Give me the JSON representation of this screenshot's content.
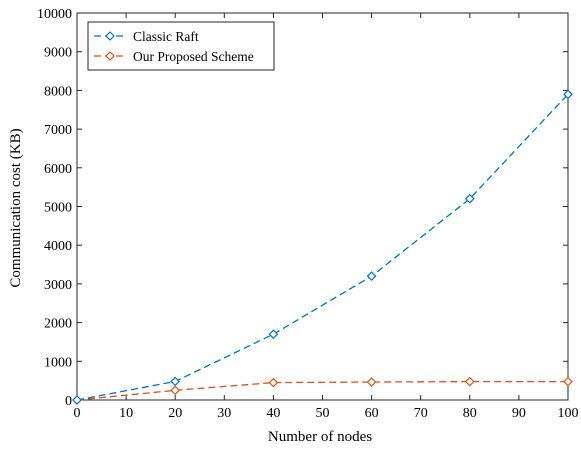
{
  "chart_data": {
    "type": "line",
    "xlabel": "Number of nodes",
    "ylabel": "Communication cost (KB)",
    "xlim": [
      0,
      100
    ],
    "ylim": [
      0,
      10000
    ],
    "xticks": [
      0,
      10,
      20,
      30,
      40,
      50,
      60,
      70,
      80,
      90,
      100
    ],
    "yticks": [
      0,
      1000,
      2000,
      3000,
      4000,
      5000,
      6000,
      7000,
      8000,
      9000,
      10000
    ],
    "x": [
      0,
      20,
      40,
      60,
      80,
      100
    ],
    "grid": false,
    "legend_position": "top-left",
    "series": [
      {
        "name": "Classic Raft",
        "color": "#0072BD",
        "marker": "diamond",
        "line_style": "dashed",
        "values": [
          0,
          480,
          1700,
          3200,
          5200,
          7900
        ]
      },
      {
        "name": "Our Proposed Scheme",
        "color": "#D95319",
        "marker": "diamond",
        "line_style": "dashed",
        "values": [
          0,
          250,
          450,
          465,
          475,
          475
        ]
      }
    ]
  }
}
